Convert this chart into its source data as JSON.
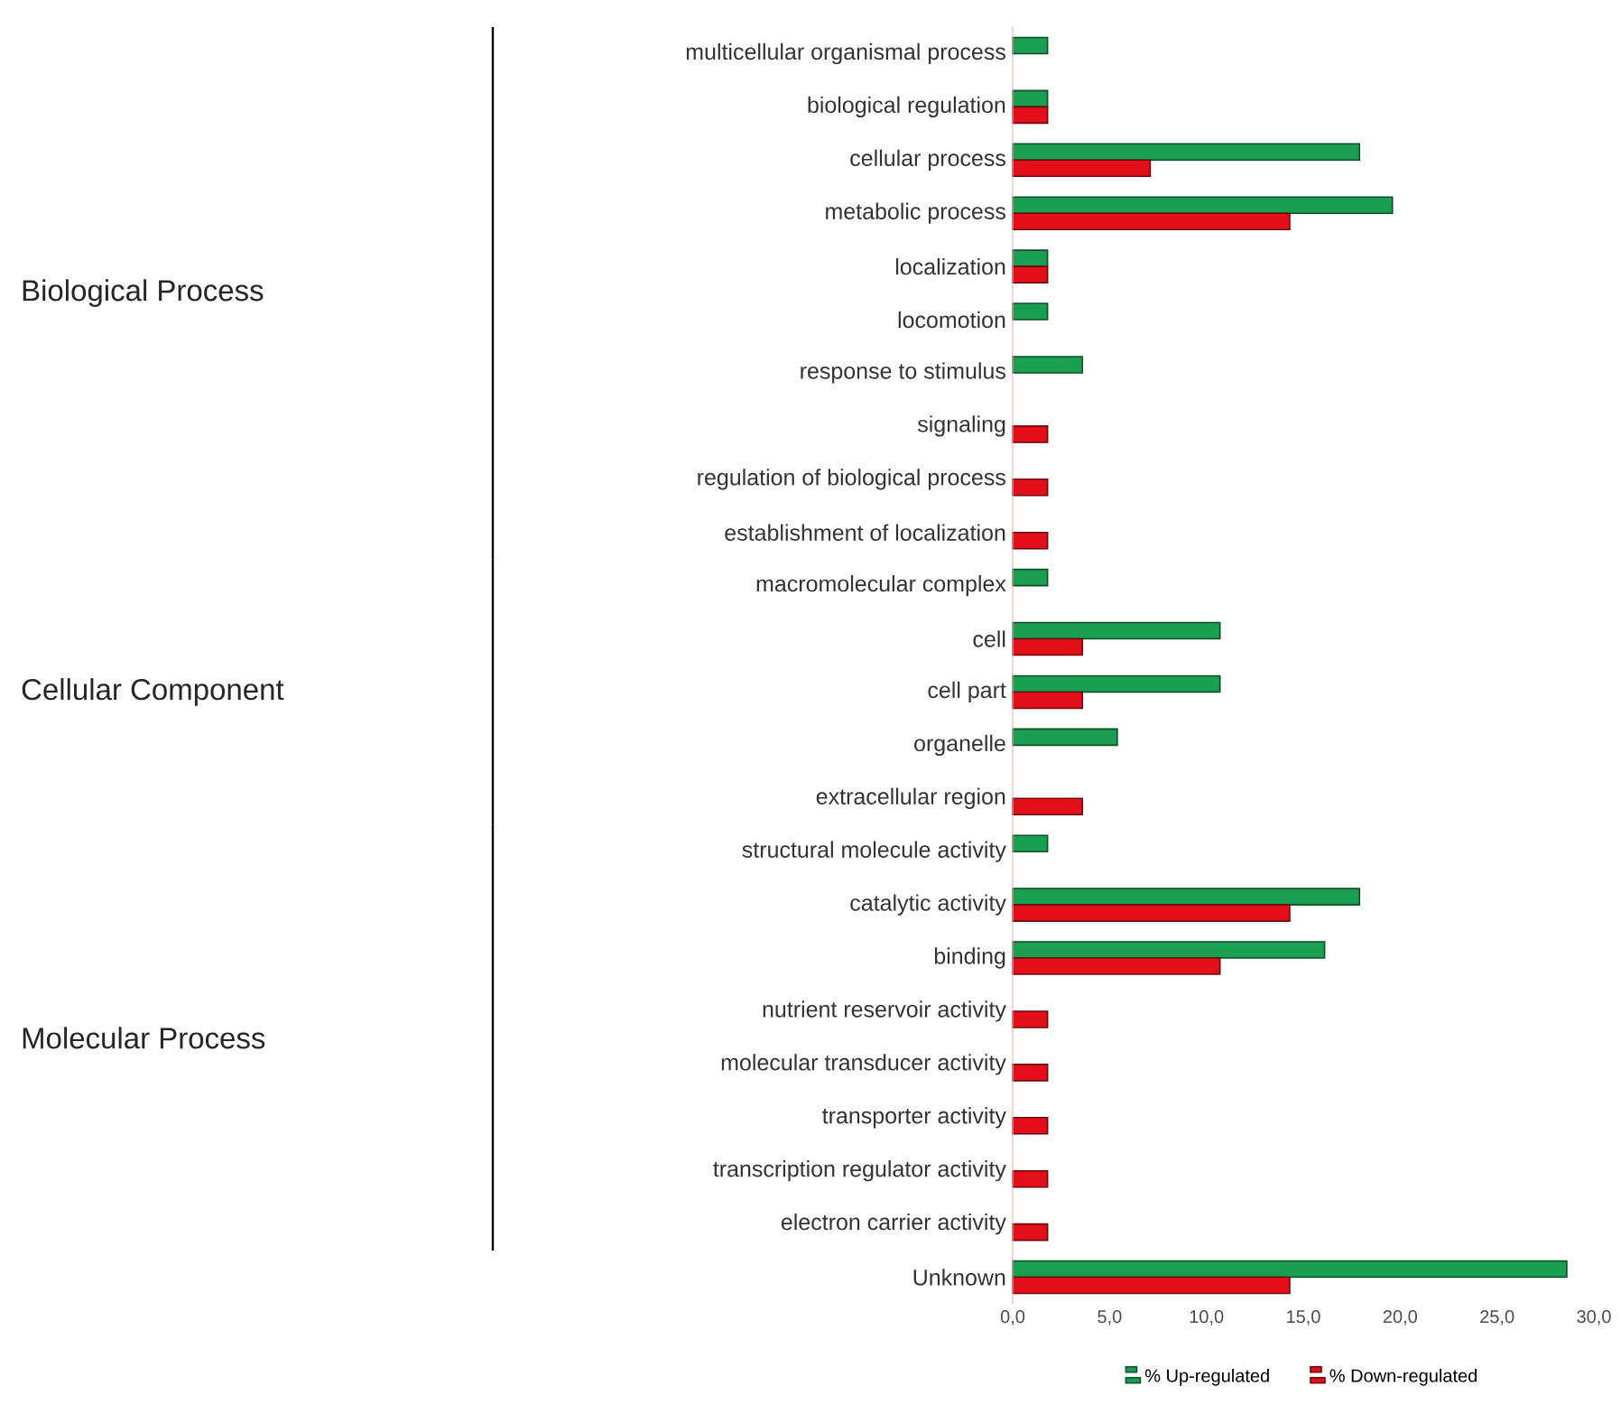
{
  "chart_data": {
    "type": "bar",
    "orientation": "horizontal",
    "categories": [
      "multicellular organismal process",
      "biological regulation",
      "cellular process",
      "metabolic process",
      "localization",
      "locomotion",
      "response to stimulus",
      "signaling",
      "regulation of biological process",
      "establishment of localization",
      "macromolecular complex",
      "cell",
      "cell part",
      "organelle",
      "extracellular region",
      "structural molecule activity",
      "catalytic activity",
      "binding",
      "nutrient reservoir activity",
      "molecular transducer activity",
      "transporter activity",
      "transcription regulator activity",
      "electron carrier activity",
      "Unknown"
    ],
    "series": [
      {
        "name": "% Up-regulated",
        "color": "#1a9e50",
        "values": [
          1.8,
          1.8,
          17.9,
          19.6,
          1.8,
          1.8,
          3.6,
          null,
          null,
          null,
          1.8,
          10.7,
          10.7,
          5.4,
          null,
          1.8,
          17.9,
          16.1,
          null,
          null,
          null,
          null,
          null,
          28.6
        ]
      },
      {
        "name": "% Down-regulated",
        "color": "#e3101a",
        "values": [
          null,
          1.8,
          7.1,
          14.3,
          1.8,
          null,
          null,
          1.8,
          1.8,
          1.8,
          null,
          3.6,
          3.6,
          null,
          3.6,
          null,
          14.3,
          10.7,
          1.8,
          1.8,
          1.8,
          1.8,
          1.8,
          14.3
        ]
      }
    ],
    "xlim": [
      0,
      30
    ],
    "xticks": [
      {
        "value": 0,
        "label": "0,0"
      },
      {
        "value": 5,
        "label": "5,0"
      },
      {
        "value": 10,
        "label": "10,0"
      },
      {
        "value": 15,
        "label": "15,0"
      },
      {
        "value": 20,
        "label": "20,0"
      },
      {
        "value": 25,
        "label": "25,0"
      },
      {
        "value": 30,
        "label": "30,0"
      }
    ],
    "annotations": [
      "Biological Process",
      "Cellular Component",
      "Molecular Process"
    ],
    "legend": "bottom",
    "grid": false
  }
}
